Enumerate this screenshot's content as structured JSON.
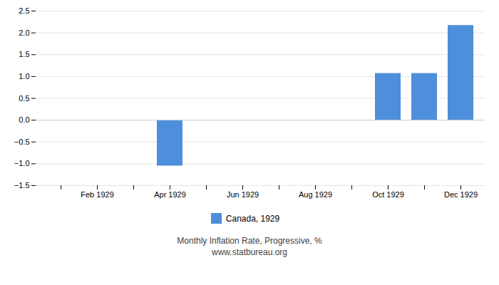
{
  "chart_data": {
    "type": "bar",
    "categories": [
      null,
      "Feb 1929",
      null,
      "Apr 1929",
      null,
      "Jun 1929",
      null,
      "Aug 1929",
      null,
      "Oct 1929",
      null,
      "Dec 1929"
    ],
    "series": [
      {
        "name": "Canada, 1929",
        "color": "#4d8fda",
        "values": [
          0,
          0,
          0,
          -1.05,
          0,
          0,
          0,
          0,
          0,
          1.07,
          1.07,
          2.17
        ]
      }
    ],
    "ylim": [
      -1.5,
      2.5
    ],
    "yticks": [
      -1.5,
      {
        "value": -1.0,
        "label": "−1.0"
      },
      -0.5,
      {
        "value": 0,
        "label": "0.0"
      },
      0.5,
      {
        "value": 1.0,
        "label": "1.0"
      },
      1.5,
      {
        "value": 2.0,
        "label": "2.0"
      },
      2.5
    ],
    "grid": true,
    "legend": "bottom",
    "subtitle": "Monthly Inflation Rate, Progressive, %",
    "annotations": [
      "www.statbureau.org"
    ]
  }
}
